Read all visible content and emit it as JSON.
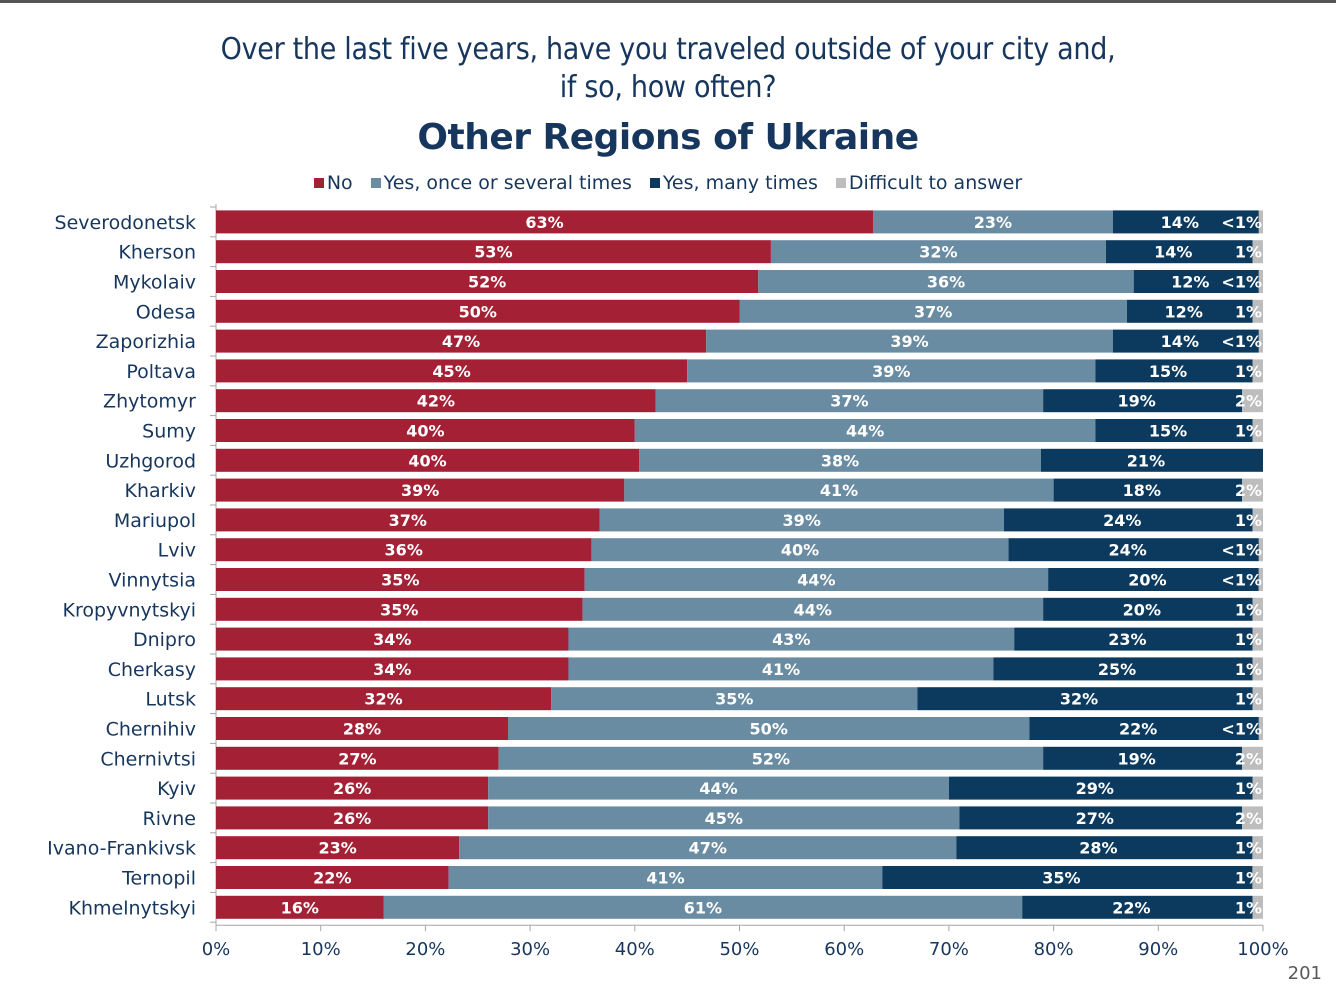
{
  "page_number": "201",
  "chart_data": {
    "type": "bar",
    "orientation": "horizontal",
    "stacked": true,
    "title": "Over the last five years, have you traveled outside of your city and, if so, how often?",
    "title_lines": [
      "Over the last five years, have you traveled outside of your city and,",
      "if so, how often?"
    ],
    "subtitle": "Other Regions of Ukraine",
    "xlabel": "",
    "ylabel": "",
    "xlim": [
      0,
      100
    ],
    "x_ticks": [
      "0%",
      "10%",
      "20%",
      "30%",
      "40%",
      "50%",
      "60%",
      "70%",
      "80%",
      "90%",
      "100%"
    ],
    "legend_position": "top",
    "grid": false,
    "categories": [
      "Severodonetsk",
      "Kherson",
      "Mykolaiv",
      "Odesa",
      "Zaporizhia",
      "Poltava",
      "Zhytomyr",
      "Sumy",
      "Uzhgorod",
      "Kharkiv",
      "Mariupol",
      "Lviv",
      "Vinnytsia",
      "Kropyvnytskyi",
      "Dnipro",
      "Cherkasy",
      "Lutsk",
      "Chernihiv",
      "Chernivtsi",
      "Kyiv",
      "Rivne",
      "Ivano-Frankivsk",
      "Ternopil",
      "Khmelnytskyi"
    ],
    "series": [
      {
        "name": "No",
        "color": "#A32035",
        "values": [
          63,
          53,
          52,
          50,
          47,
          45,
          42,
          40,
          40,
          39,
          37,
          36,
          35,
          35,
          34,
          34,
          32,
          28,
          27,
          26,
          26,
          23,
          22,
          16
        ],
        "labels": [
          "63%",
          "53%",
          "52%",
          "50%",
          "47%",
          "45%",
          "42%",
          "40%",
          "40%",
          "39%",
          "37%",
          "36%",
          "35%",
          "35%",
          "34%",
          "34%",
          "32%",
          "28%",
          "27%",
          "26%",
          "26%",
          "23%",
          "22%",
          "16%"
        ]
      },
      {
        "name": "Yes, once or several times",
        "color": "#6A8CA2",
        "values": [
          23,
          32,
          36,
          37,
          39,
          39,
          37,
          44,
          38,
          41,
          39,
          40,
          44,
          44,
          43,
          41,
          35,
          50,
          52,
          44,
          45,
          47,
          41,
          61
        ],
        "labels": [
          "23%",
          "32%",
          "36%",
          "37%",
          "39%",
          "39%",
          "37%",
          "44%",
          "38%",
          "41%",
          "39%",
          "40%",
          "44%",
          "44%",
          "43%",
          "41%",
          "35%",
          "50%",
          "52%",
          "44%",
          "45%",
          "47%",
          "41%",
          "61%"
        ]
      },
      {
        "name": "Yes, many times",
        "color": "#0B3A5E",
        "values": [
          14,
          14,
          12,
          12,
          14,
          15,
          19,
          15,
          21,
          18,
          24,
          24,
          20,
          20,
          23,
          25,
          32,
          22,
          19,
          29,
          27,
          28,
          35,
          22
        ],
        "labels": [
          "14%",
          "14%",
          "12%",
          "12%",
          "14%",
          "15%",
          "19%",
          "15%",
          "21%",
          "18%",
          "24%",
          "24%",
          "20%",
          "20%",
          "23%",
          "25%",
          "32%",
          "22%",
          "19%",
          "29%",
          "27%",
          "28%",
          "35%",
          "22%"
        ]
      },
      {
        "name": "Difficult to answer",
        "color": "#BDBDBD",
        "values": [
          0.4,
          1,
          0.4,
          1,
          0.4,
          1,
          2,
          1,
          0,
          2,
          1,
          0.4,
          0.4,
          1,
          1,
          1,
          1,
          0.4,
          2,
          1,
          2,
          1,
          1,
          1
        ],
        "labels": [
          "<1%",
          "1%",
          "<1%",
          "1%",
          "<1%",
          "1%",
          "2%",
          "1%",
          "",
          "2%",
          "1%",
          "<1%",
          "<1%",
          "1%",
          "1%",
          "1%",
          "1%",
          "<1%",
          "2%",
          "1%",
          "2%",
          "1%",
          "1%",
          "1%"
        ]
      }
    ]
  }
}
